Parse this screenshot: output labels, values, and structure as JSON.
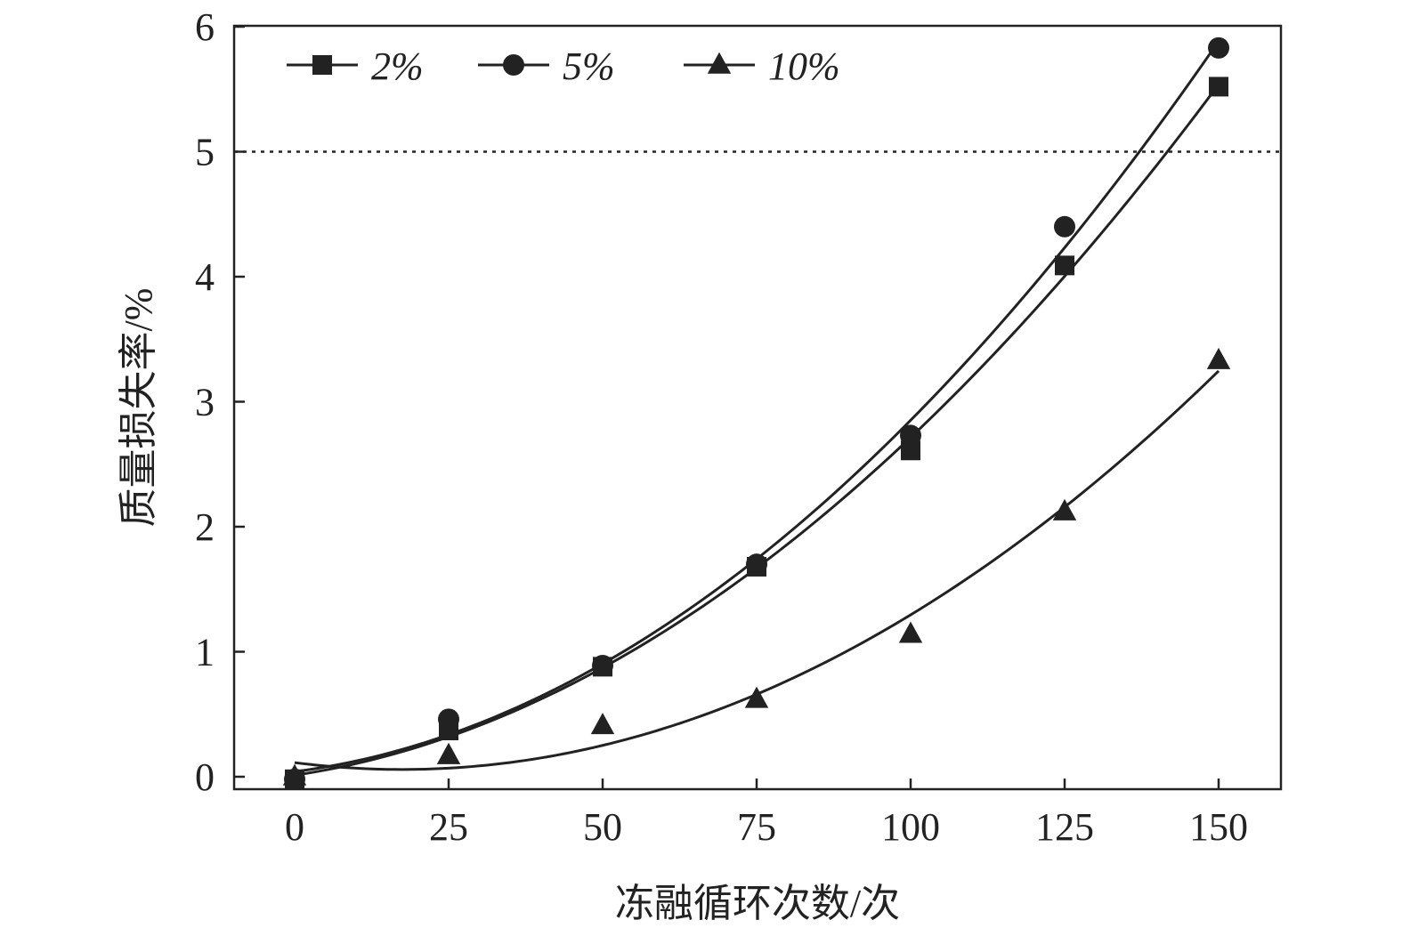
{
  "chart_data": {
    "type": "scatter",
    "xlabel": "冻融循环次数/次",
    "ylabel": "质量损失率/%",
    "xlim": [
      -20,
      320
    ],
    "ylim": [
      -0.1,
      6.0
    ],
    "xticks": [
      0,
      25,
      50,
      75,
      100,
      125,
      150
    ],
    "yticks": [
      0,
      1,
      2,
      3,
      4,
      5,
      6
    ],
    "grid": false,
    "legend_position": "top-left",
    "reference_line": {
      "y": 5,
      "style": "dotted"
    },
    "fit": "quadratic",
    "series": [
      {
        "name": "2%",
        "marker": "square",
        "x": [
          0,
          25,
          50,
          75,
          100,
          125,
          150
        ],
        "y": [
          -0.02,
          0.37,
          0.88,
          1.68,
          2.61,
          4.09,
          5.52
        ]
      },
      {
        "name": "5%",
        "marker": "circle",
        "x": [
          0,
          25,
          50,
          75,
          100,
          125,
          150
        ],
        "y": [
          -0.02,
          0.46,
          0.89,
          1.7,
          2.73,
          4.4,
          5.83
        ]
      },
      {
        "name": "10%",
        "marker": "triangle",
        "x": [
          0,
          25,
          50,
          75,
          100,
          125,
          150
        ],
        "y": [
          0.0,
          0.17,
          0.41,
          0.62,
          1.14,
          2.12,
          3.33
        ]
      }
    ]
  }
}
